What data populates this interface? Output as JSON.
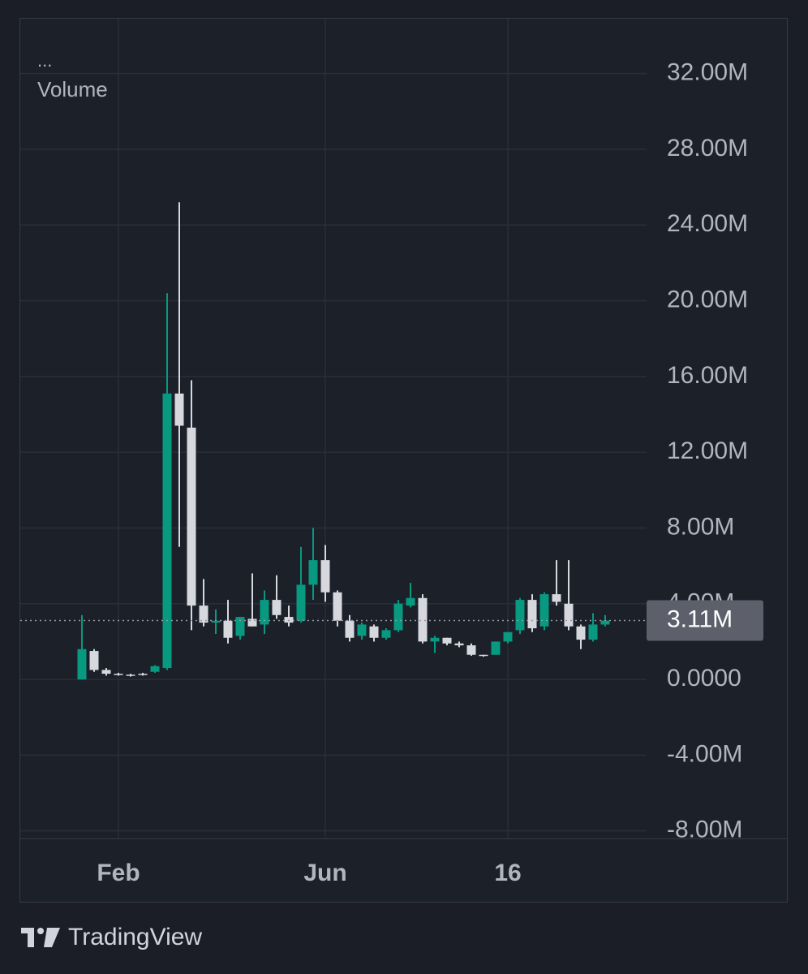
{
  "header": {
    "menu": "...",
    "indicator": "Volume"
  },
  "chart_data": {
    "type": "candlestick",
    "categories": [
      null,
      null,
      null,
      "Feb",
      null,
      null,
      null,
      null,
      null,
      null,
      null,
      null,
      null,
      null,
      null,
      null,
      null,
      null,
      null,
      null,
      "Jun",
      null,
      null,
      null,
      null,
      null,
      null,
      null,
      null,
      null,
      null,
      null,
      null,
      null,
      null,
      "16",
      null,
      null,
      null,
      null,
      null,
      null,
      null,
      null
    ],
    "open": [
      0,
      1.5,
      0.5,
      0.3,
      0.25,
      0.3,
      0.4,
      0.6,
      15.1,
      13.3,
      3.9,
      3.0,
      3.1,
      2.3,
      3.2,
      2.9,
      4.2,
      3.3,
      3.1,
      5.0,
      6.3,
      4.6,
      3.1,
      2.3,
      2.8,
      2.2,
      2.6,
      3.9,
      4.3,
      2.0,
      2.2,
      1.9,
      1.8,
      1.3,
      1.3,
      2.0,
      2.6,
      4.2,
      2.8,
      4.5,
      4.0,
      2.8,
      2.1,
      2.9
    ],
    "high": [
      3.4,
      1.6,
      0.6,
      0.35,
      0.3,
      0.35,
      0.75,
      20.4,
      25.2,
      15.8,
      5.3,
      3.7,
      4.2,
      3.3,
      5.6,
      4.7,
      5.5,
      3.9,
      7.0,
      8.0,
      7.1,
      4.7,
      3.4,
      3.0,
      2.9,
      2.7,
      4.2,
      5.1,
      4.5,
      2.3,
      2.2,
      2.0,
      1.9,
      1.3,
      2.0,
      2.5,
      4.3,
      4.5,
      4.6,
      6.3,
      6.3,
      2.9,
      3.5,
      3.4
    ],
    "low": [
      0,
      0.4,
      0.2,
      0.2,
      0.15,
      0.2,
      0.35,
      0.5,
      7.0,
      2.6,
      2.8,
      2.4,
      1.9,
      2.1,
      2.8,
      2.4,
      3.2,
      2.8,
      3.0,
      4.2,
      4.1,
      2.8,
      2.0,
      2.1,
      2.0,
      2.1,
      2.5,
      3.8,
      1.9,
      1.4,
      1.8,
      1.7,
      1.25,
      1.2,
      1.3,
      1.9,
      2.4,
      2.5,
      2.6,
      3.9,
      2.6,
      1.6,
      2.0,
      2.8
    ],
    "close": [
      1.6,
      0.5,
      0.3,
      0.25,
      0.2,
      0.25,
      0.7,
      15.1,
      13.4,
      3.9,
      3.0,
      3.1,
      2.2,
      3.3,
      2.8,
      4.2,
      3.4,
      3.0,
      5.0,
      6.3,
      4.6,
      3.1,
      2.2,
      2.9,
      2.2,
      2.6,
      4.0,
      4.3,
      2.0,
      2.2,
      1.9,
      1.8,
      1.3,
      1.25,
      2.0,
      2.5,
      4.2,
      2.7,
      4.5,
      4.1,
      2.8,
      2.1,
      2.9,
      3.11
    ],
    "up_color": "#089981",
    "down_color": "#d6d8de",
    "ylim": [
      -8.4,
      34.9
    ],
    "yticks": [
      {
        "value": -8,
        "label": "-8.00M"
      },
      {
        "value": -4,
        "label": "-4.00M"
      },
      {
        "value": 0,
        "label": "0.0000"
      },
      {
        "value": 4,
        "label": "4.00M"
      },
      {
        "value": 8,
        "label": "8.00M"
      },
      {
        "value": 12,
        "label": "12.00M"
      },
      {
        "value": 16,
        "label": "16.00M"
      },
      {
        "value": 20,
        "label": "20.00M"
      },
      {
        "value": 24,
        "label": "24.00M"
      },
      {
        "value": 28,
        "label": "28.00M"
      },
      {
        "value": 32,
        "label": "32.00M"
      }
    ],
    "last_value": {
      "value": 3.11,
      "label": "3.11M"
    },
    "grid": true
  },
  "footer": {
    "brand": "TradingView"
  }
}
